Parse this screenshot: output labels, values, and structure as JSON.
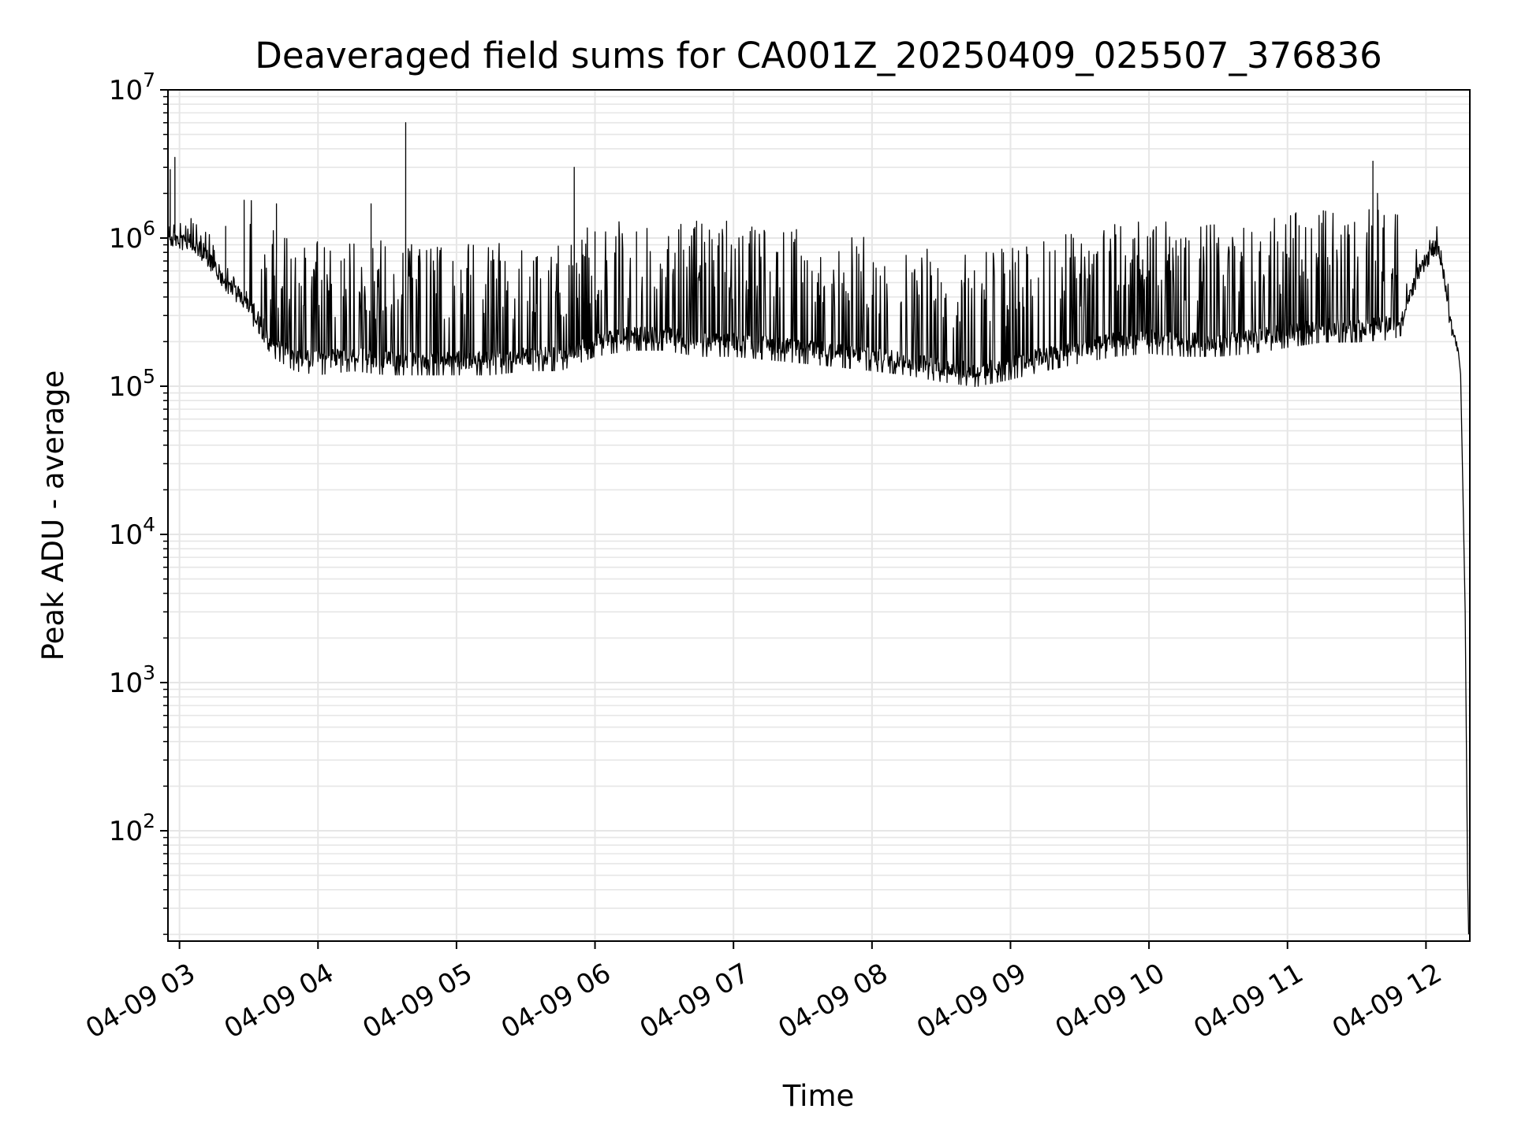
{
  "chart_data": {
    "type": "line",
    "title": "Deaveraged field sums for CA001Z_20250409_025507_376836",
    "xlabel": "Time",
    "ylabel": "Peak ADU - average",
    "y_scale": "log",
    "ylim": [
      18,
      10000000
    ],
    "xlim": [
      "2025-04-09T02:55:00",
      "2025-04-09T12:19:00"
    ],
    "grid": true,
    "line_color": "#000000",
    "grid_color": "#e6e6e6",
    "x_ticks": [
      {
        "t": "2025-04-09T03:00:00",
        "label": "04-09 03"
      },
      {
        "t": "2025-04-09T04:00:00",
        "label": "04-09 04"
      },
      {
        "t": "2025-04-09T05:00:00",
        "label": "04-09 05"
      },
      {
        "t": "2025-04-09T06:00:00",
        "label": "04-09 06"
      },
      {
        "t": "2025-04-09T07:00:00",
        "label": "04-09 07"
      },
      {
        "t": "2025-04-09T08:00:00",
        "label": "04-09 08"
      },
      {
        "t": "2025-04-09T09:00:00",
        "label": "04-09 09"
      },
      {
        "t": "2025-04-09T10:00:00",
        "label": "04-09 10"
      },
      {
        "t": "2025-04-09T11:00:00",
        "label": "04-09 11"
      },
      {
        "t": "2025-04-09T12:00:00",
        "label": "04-09 12"
      }
    ],
    "y_ticks": [
      {
        "value": 100,
        "base": "10",
        "exp": "2"
      },
      {
        "value": 1000,
        "base": "10",
        "exp": "3"
      },
      {
        "value": 10000,
        "base": "10",
        "exp": "4"
      },
      {
        "value": 100000,
        "base": "10",
        "exp": "5"
      },
      {
        "value": 1000000,
        "base": "10",
        "exp": "6"
      },
      {
        "value": 10000000,
        "base": "10",
        "exp": "7"
      }
    ],
    "series": [
      {
        "x": [
          "2025-04-09T02:55:00",
          "2025-04-09T03:00:00",
          "2025-04-09T03:05:00",
          "2025-04-09T03:10:00",
          "2025-04-09T03:15:00",
          "2025-04-09T03:20:00",
          "2025-04-09T03:25:00",
          "2025-04-09T03:30:00",
          "2025-04-09T03:35:00",
          "2025-04-09T03:40:00",
          "2025-04-09T03:50:00",
          "2025-04-09T04:00:00",
          "2025-04-09T04:15:00",
          "2025-04-09T04:30:00",
          "2025-04-09T04:45:00",
          "2025-04-09T05:00:00",
          "2025-04-09T05:15:00",
          "2025-04-09T05:30:00",
          "2025-04-09T05:45:00",
          "2025-04-09T06:00:00",
          "2025-04-09T06:15:00",
          "2025-04-09T06:30:00",
          "2025-04-09T06:45:00",
          "2025-04-09T07:00:00",
          "2025-04-09T07:15:00",
          "2025-04-09T07:30:00",
          "2025-04-09T07:45:00",
          "2025-04-09T08:00:00",
          "2025-04-09T08:15:00",
          "2025-04-09T08:30:00",
          "2025-04-09T08:45:00",
          "2025-04-09T09:00:00",
          "2025-04-09T09:15:00",
          "2025-04-09T09:30:00",
          "2025-04-09T09:45:00",
          "2025-04-09T10:00:00",
          "2025-04-09T10:15:00",
          "2025-04-09T10:30:00",
          "2025-04-09T10:45:00",
          "2025-04-09T11:00:00",
          "2025-04-09T11:15:00",
          "2025-04-09T11:30:00",
          "2025-04-09T11:45:00",
          "2025-04-09T11:50:00",
          "2025-04-09T11:55:00",
          "2025-04-09T12:00:00",
          "2025-04-09T12:03:00",
          "2025-04-09T12:06:00",
          "2025-04-09T12:08:00",
          "2025-04-09T12:10:00",
          "2025-04-09T12:12:00",
          "2025-04-09T12:13:00",
          "2025-04-09T12:14:00",
          "2025-04-09T12:15:00",
          "2025-04-09T12:16:00",
          "2025-04-09T12:17:00",
          "2025-04-09T12:17:30",
          "2025-04-09T12:18:00",
          "2025-04-09T12:18:30"
        ],
        "y": [
          1000000,
          950000,
          900000,
          800000,
          650000,
          500000,
          420000,
          350000,
          280000,
          200000,
          160000,
          150000,
          160000,
          150000,
          150000,
          150000,
          150000,
          160000,
          160000,
          200000,
          220000,
          220000,
          200000,
          200000,
          190000,
          180000,
          170000,
          160000,
          150000,
          135000,
          125000,
          140000,
          160000,
          180000,
          200000,
          210000,
          200000,
          200000,
          210000,
          230000,
          250000,
          250000,
          260000,
          280000,
          500000,
          700000,
          850000,
          800000,
          550000,
          300000,
          200000,
          180000,
          180000,
          120000,
          20000,
          3000,
          400,
          50,
          20
        ]
      }
    ],
    "spikes": [
      {
        "x": "2025-04-09T02:56:00",
        "y": 2900000
      },
      {
        "x": "2025-04-09T02:58:00",
        "y": 3500000
      },
      {
        "x": "2025-04-09T03:20:00",
        "y": 1200000
      },
      {
        "x": "2025-04-09T03:28:00",
        "y": 1800000
      },
      {
        "x": "2025-04-09T03:42:00",
        "y": 1700000
      },
      {
        "x": "2025-04-09T04:10:00",
        "y": 700000
      },
      {
        "x": "2025-04-09T04:23:00",
        "y": 1700000
      },
      {
        "x": "2025-04-09T04:38:00",
        "y": 6000000
      },
      {
        "x": "2025-04-09T04:50:00",
        "y": 700000
      },
      {
        "x": "2025-04-09T05:15:00",
        "y": 700000
      },
      {
        "x": "2025-04-09T05:35:00",
        "y": 750000
      },
      {
        "x": "2025-04-09T05:51:00",
        "y": 3000000
      },
      {
        "x": "2025-04-09T06:00:00",
        "y": 1100000
      },
      {
        "x": "2025-04-09T06:18:00",
        "y": 1100000
      },
      {
        "x": "2025-04-09T06:44:00",
        "y": 1300000
      },
      {
        "x": "2025-04-09T06:57:00",
        "y": 1300000
      },
      {
        "x": "2025-04-09T07:30:00",
        "y": 500000
      },
      {
        "x": "2025-04-09T08:30:00",
        "y": 500000
      },
      {
        "x": "2025-04-09T08:40:00",
        "y": 500000
      },
      {
        "x": "2025-04-09T10:00:00",
        "y": 600000
      },
      {
        "x": "2025-04-09T10:40:00",
        "y": 800000
      },
      {
        "x": "2025-04-09T11:05:00",
        "y": 700000
      },
      {
        "x": "2025-04-09T11:37:00",
        "y": 3300000
      },
      {
        "x": "2025-04-09T11:39:00",
        "y": 2000000
      }
    ]
  }
}
